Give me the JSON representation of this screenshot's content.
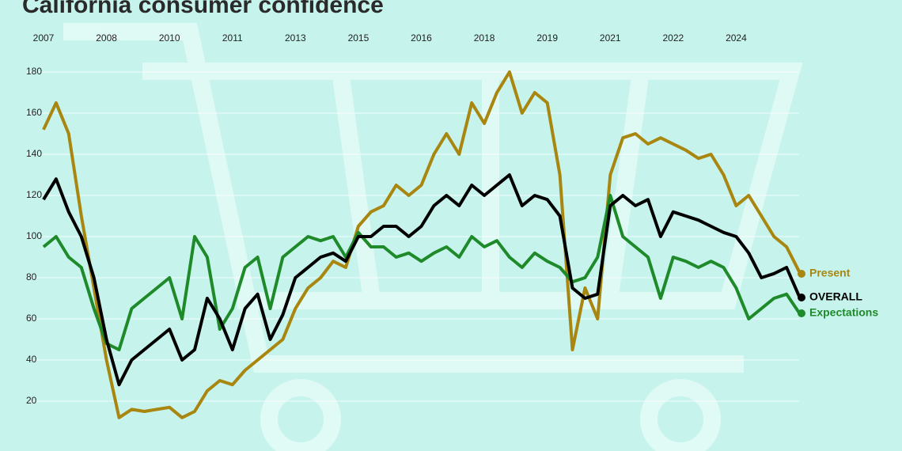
{
  "chart_data": {
    "type": "line",
    "title": "California consumer confidence",
    "categories": [
      "2007",
      null,
      null,
      null,
      null,
      "2008",
      null,
      null,
      null,
      null,
      "2010",
      null,
      null,
      null,
      null,
      "2011",
      null,
      null,
      null,
      null,
      "2013",
      null,
      null,
      null,
      null,
      "2015",
      null,
      null,
      null,
      null,
      "2016",
      null,
      null,
      null,
      null,
      "2018",
      null,
      null,
      null,
      null,
      "2019",
      null,
      null,
      null,
      null,
      "2021",
      null,
      null,
      null,
      null,
      "2022",
      null,
      null,
      null,
      null,
      "2024",
      null,
      null,
      null,
      null,
      null
    ],
    "series": [
      {
        "name": "Present",
        "color": "#a8860f",
        "values": [
          152,
          165,
          150,
          110,
          75,
          40,
          12,
          16,
          15,
          16,
          17,
          12,
          15,
          25,
          30,
          28,
          35,
          40,
          45,
          50,
          65,
          75,
          80,
          88,
          85,
          105,
          112,
          115,
          125,
          120,
          125,
          140,
          150,
          140,
          165,
          155,
          170,
          180,
          160,
          170,
          165,
          130,
          45,
          75,
          60,
          130,
          148,
          150,
          145,
          148,
          145,
          142,
          138,
          140,
          130,
          115,
          120,
          110,
          100,
          95,
          83
        ]
      },
      {
        "name": "OVERALL",
        "color": "#000000",
        "values": [
          118,
          128,
          112,
          100,
          80,
          50,
          28,
          40,
          45,
          50,
          55,
          40,
          45,
          70,
          60,
          45,
          65,
          72,
          50,
          62,
          80,
          85,
          90,
          92,
          88,
          100,
          100,
          105,
          105,
          100,
          105,
          115,
          120,
          115,
          125,
          120,
          125,
          130,
          115,
          120,
          118,
          110,
          75,
          70,
          72,
          115,
          120,
          115,
          118,
          100,
          112,
          110,
          108,
          105,
          102,
          100,
          92,
          80,
          82,
          85,
          71
        ]
      },
      {
        "name": "Expectations",
        "color": "#1e8a2a",
        "values": [
          95,
          100,
          90,
          85,
          65,
          48,
          45,
          65,
          70,
          75,
          80,
          60,
          100,
          90,
          55,
          65,
          85,
          90,
          65,
          90,
          95,
          100,
          98,
          100,
          90,
          102,
          95,
          95,
          90,
          92,
          88,
          92,
          95,
          90,
          100,
          95,
          98,
          90,
          85,
          92,
          88,
          85,
          78,
          80,
          90,
          120,
          100,
          95,
          90,
          70,
          90,
          88,
          85,
          88,
          85,
          75,
          60,
          65,
          70,
          72,
          63
        ]
      }
    ],
    "ylim": [
      10,
      190
    ],
    "yticks": [
      20,
      40,
      60,
      80,
      100,
      120,
      140,
      160,
      180
    ],
    "grid": true
  }
}
